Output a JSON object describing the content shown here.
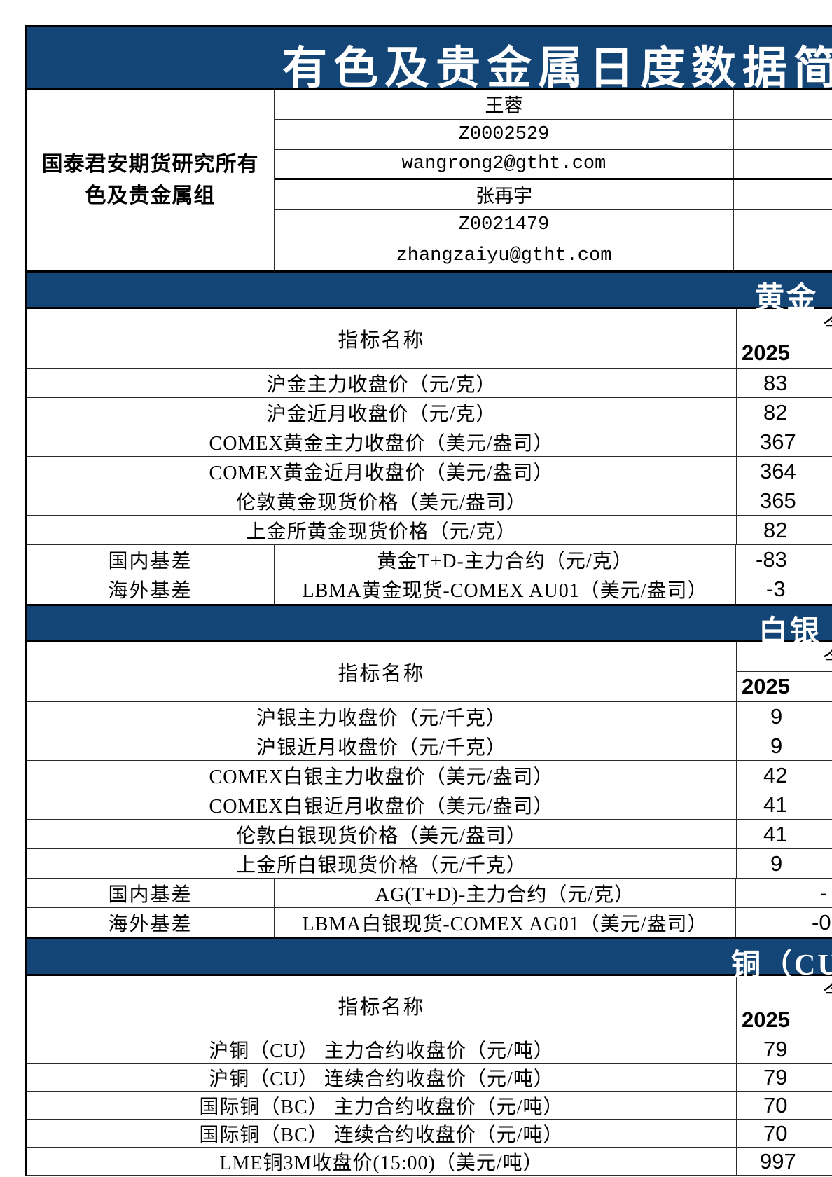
{
  "title": "有色及贵金属日度数据简报",
  "org_lines": [
    "国泰君安期货研究所有",
    "色及贵金属组"
  ],
  "contacts": [
    "王蓉",
    "Z0002529",
    "wangrong2@gtht.com",
    "张再宇",
    "Z0021479",
    "zhangzaiyu@gtht.com"
  ],
  "indicator_header": "指标名称",
  "colors": {
    "header_blue": "#134577",
    "grid_line": "#2b2b2b",
    "text_on_blue": "#ffffff"
  },
  "sections": [
    {
      "id": "gold",
      "title": "黄金（",
      "col_header": "今",
      "date": "2025",
      "rows": [
        {
          "label": "沪金主力收盘价（元/克）",
          "value": "83",
          "pad": 38
        },
        {
          "label": "沪金近月收盘价（元/克）",
          "value": "82",
          "pad": 38
        },
        {
          "label": "COMEX黄金主力收盘价（美元/盎司）",
          "value": "367",
          "pad": 33
        },
        {
          "label": "COMEX黄金近月收盘价（美元/盎司）",
          "value": "364",
          "pad": 33
        },
        {
          "label": "伦敦黄金现货价格（美元/盎司）",
          "value": "365",
          "pad": 33
        },
        {
          "label": "上金所黄金现货价格（元/克）",
          "value": "82",
          "pad": 38
        },
        {
          "category": "国内基差",
          "label": "黄金T+D-主力合约（元/克）",
          "value": "-83",
          "pad": 28
        },
        {
          "category": "海外基差",
          "label": "LBMA黄金现货-COMEX AU01（美元/盎司）",
          "value": "-3",
          "pad": 43
        }
      ]
    },
    {
      "id": "silver",
      "title": "白银（",
      "col_header": "今",
      "date": "2025",
      "rows": [
        {
          "label": "沪银主力收盘价（元/千克）",
          "value": "9",
          "pad": 48
        },
        {
          "label": "沪银近月收盘价（元/千克）",
          "value": "9",
          "pad": 48
        },
        {
          "label": "COMEX白银主力收盘价（美元/盎司）",
          "value": "42",
          "pad": 38
        },
        {
          "label": "COMEX白银近月收盘价（美元/盎司）",
          "value": "41",
          "pad": 38
        },
        {
          "label": "伦敦白银现货价格（美元/盎司）",
          "value": "41",
          "pad": 38
        },
        {
          "label": "上金所白银现货价格（元/千克）",
          "value": "9",
          "pad": 48
        },
        {
          "category": "国内基差",
          "label": "AG(T+D)-主力合约（元/克）",
          "value": "-",
          "pad": 120
        },
        {
          "category": "海外基差",
          "label": "LBMA白银现货-COMEX AG01（美元/盎司）",
          "value": "-0",
          "pad": 108
        }
      ]
    },
    {
      "id": "copper",
      "title": "铜（CU,",
      "col_header": "今",
      "date": "2025",
      "rows": [
        {
          "label": "沪铜（CU） 主力合约收盘价（元/吨）",
          "value": "79",
          "pad": 38
        },
        {
          "label": "沪铜（CU） 连续合约收盘价（元/吨）",
          "value": "79",
          "pad": 38
        },
        {
          "label": "国际铜（BC） 主力合约收盘价（元/吨）",
          "value": "70",
          "pad": 38
        },
        {
          "label": "国际铜（BC） 连续合约收盘价（元/吨）",
          "value": "70",
          "pad": 38
        },
        {
          "label": "LME铜3M收盘价(15:00)（美元/吨）",
          "value": "997",
          "pad": 33
        }
      ]
    }
  ]
}
